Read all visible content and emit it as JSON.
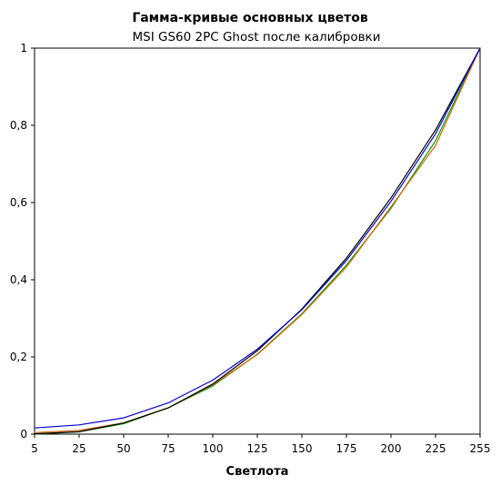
{
  "chart_data": {
    "type": "line",
    "title": "Гамма-кривые  основных цветов",
    "subtitle": "MSI GS60 2PC Ghost после калибровки",
    "xlabel": "Светлота",
    "ylabel": "",
    "x": [
      5,
      25,
      50,
      75,
      100,
      125,
      150,
      175,
      200,
      225,
      255
    ],
    "x_tick_labels": [
      "5",
      "25",
      "50",
      "75",
      "100",
      "125",
      "150",
      "175",
      "200",
      "225",
      "255"
    ],
    "y_tick_labels": [
      "0",
      "0,2",
      "0,4",
      "0,6",
      "0,8",
      "1"
    ],
    "y_ticks": [
      0,
      0.2,
      0.4,
      0.6,
      0.8,
      1
    ],
    "ylim": [
      0,
      1
    ],
    "grid": false,
    "legend": "none",
    "series": [
      {
        "color": "#00a000",
        "values": [
          0.0,
          0.006,
          0.027,
          0.068,
          0.125,
          0.207,
          0.312,
          0.438,
          0.585,
          0.76,
          1.0
        ]
      },
      {
        "color": "#e06000",
        "values": [
          0.004,
          0.01,
          0.029,
          0.068,
          0.128,
          0.206,
          0.31,
          0.433,
          0.589,
          0.748,
          1.0
        ]
      },
      {
        "color": "#000000",
        "values": [
          0.001,
          0.006,
          0.029,
          0.068,
          0.13,
          0.216,
          0.324,
          0.456,
          0.612,
          0.788,
          1.0
        ]
      },
      {
        "color": "#0000d0",
        "values": [
          0.016,
          0.024,
          0.042,
          0.081,
          0.14,
          0.22,
          0.322,
          0.45,
          0.603,
          0.778,
          1.0
        ]
      }
    ]
  }
}
